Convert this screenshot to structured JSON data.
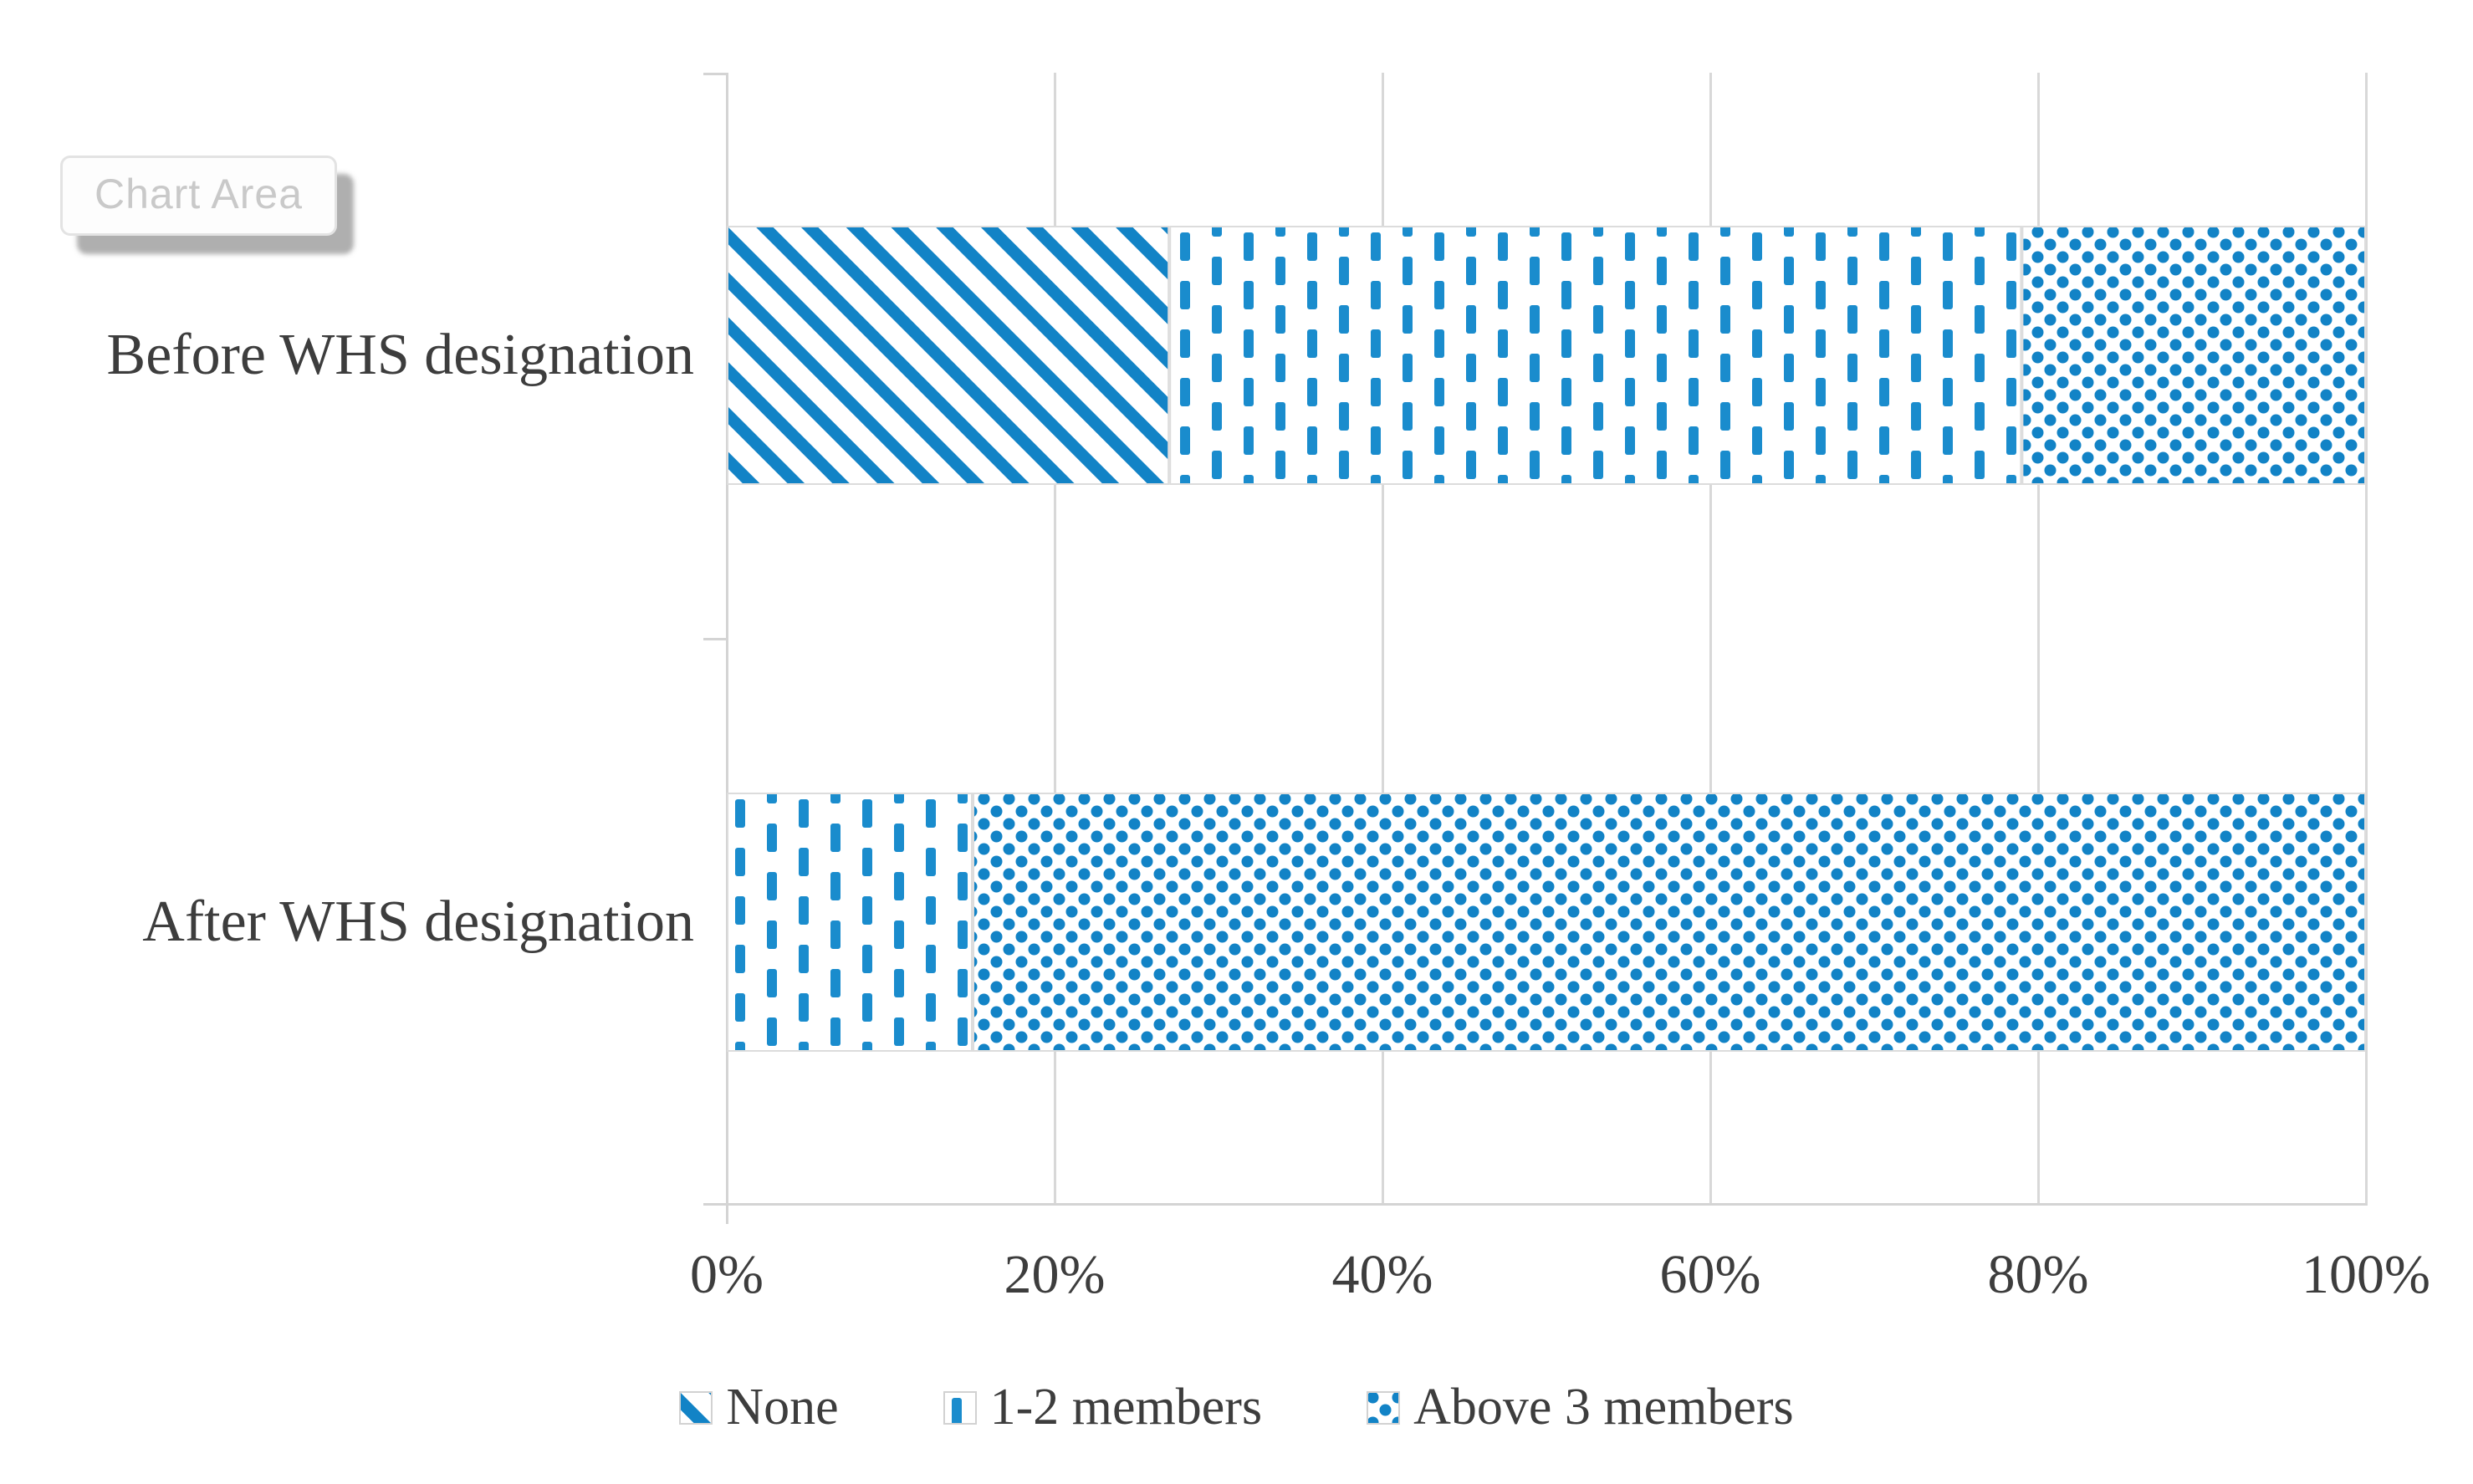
{
  "tooltip": {
    "label": "Chart Area"
  },
  "chart_data": {
    "type": "bar",
    "orientation": "horizontal",
    "stacked": true,
    "stack_mode": "100%",
    "unit": "%",
    "title": "",
    "xlabel": "",
    "ylabel": "",
    "categories": [
      "Before WHS designation",
      "After WHS designation"
    ],
    "series": [
      {
        "name": "None",
        "pattern": "diagonal-hatch",
        "values": [
          27,
          0
        ]
      },
      {
        "name": "1-2 members",
        "pattern": "vertical-dashes",
        "values": [
          52,
          15
        ]
      },
      {
        "name": "Above 3 members",
        "pattern": "dots",
        "values": [
          21,
          85
        ]
      }
    ],
    "x_ticks": [
      "0%",
      "20%",
      "40%",
      "60%",
      "80%",
      "100%"
    ],
    "x_tick_values": [
      0,
      20,
      40,
      60,
      80,
      100
    ],
    "xlim": [
      0,
      100
    ],
    "grid": true,
    "legend_position": "bottom",
    "colors": {
      "series_blue": "#1283c6",
      "gridline": "#d8d8d8",
      "axis": "#d4d4d4",
      "bar_border": "#dcdcdc",
      "text": "#3d3d3d",
      "tooltip_text": "#c9c9c9",
      "tooltip_border": "#e3e3e3",
      "background": "#ffffff"
    }
  }
}
